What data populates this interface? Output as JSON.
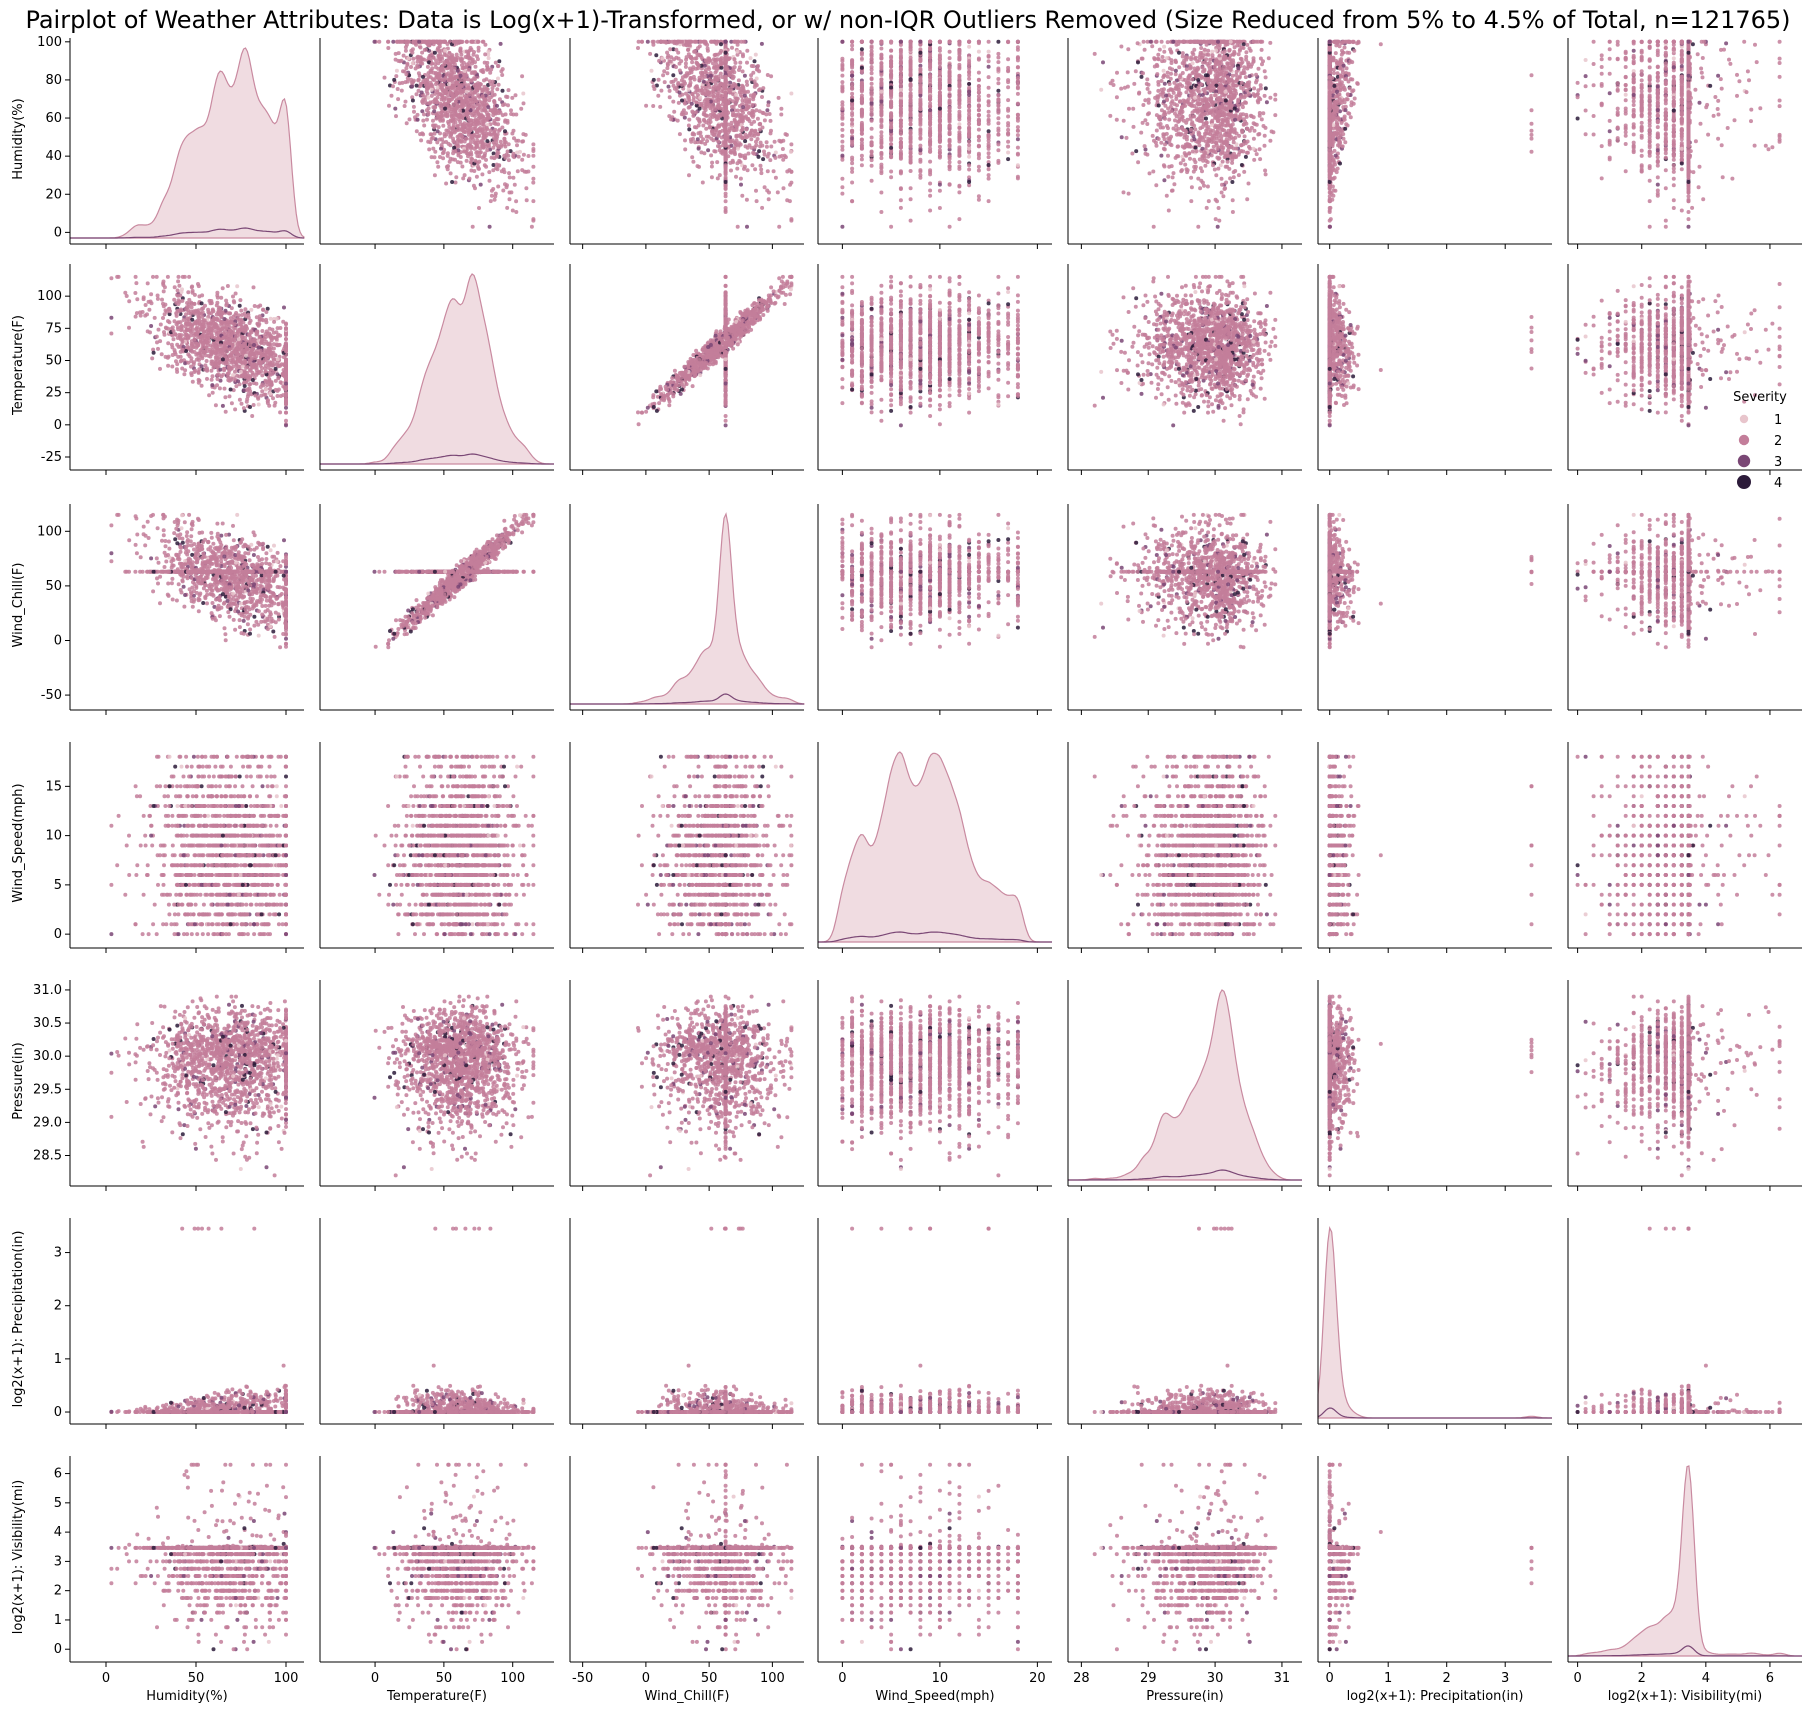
{
  "chart_data": {
    "type": "scatter",
    "title": "Pairplot of Weather Attributes: Data is Log(x+1)-Transformed, or w/ non-IQR Outliers Removed (Size Reduced from 5% to 4.5% of Total, n=121765)",
    "variables": [
      {
        "name": "Humidity(%)",
        "label": "Humidity(%)",
        "range": [
          -20,
          110
        ],
        "ticks": [
          0,
          50,
          100
        ],
        "ytick_labels": [
          0,
          20,
          40,
          60,
          80,
          100
        ],
        "ylim": [
          -4,
          102
        ]
      },
      {
        "name": "Temperature(F)",
        "label": "Temperature(F)",
        "range": [
          -40,
          130
        ],
        "ticks": [
          0,
          50,
          100
        ],
        "ytick_labels": [
          -25,
          0,
          25,
          50,
          75,
          100
        ],
        "ylim": [
          -32,
          125
        ]
      },
      {
        "name": "Wind_Chill(F)",
        "label": "Wind_Chill(F)",
        "range": [
          -60,
          125
        ],
        "ticks": [
          -50,
          0,
          50,
          100
        ],
        "ytick_labels": [
          -50,
          0,
          50,
          100
        ],
        "ylim": [
          -60,
          125
        ]
      },
      {
        "name": "Wind_Speed(mph)",
        "label": "Wind_Speed(mph)",
        "range": [
          -2.5,
          21.5
        ],
        "ticks": [
          0,
          10,
          20
        ],
        "ytick_labels": [
          0,
          5,
          10,
          15
        ],
        "ylim": [
          -1.0,
          19.5
        ]
      },
      {
        "name": "Pressure(in)",
        "label": "Pressure(in)",
        "range": [
          27.8,
          31.3
        ],
        "ticks": [
          28,
          29,
          30,
          31
        ],
        "ytick_labels": [
          28.5,
          29.0,
          29.5,
          30.0,
          30.5,
          31.0
        ],
        "ylim": [
          28.1,
          31.15
        ]
      },
      {
        "name": "log2(x+1): Precipitation(in)",
        "label": "log2(x+1): Precipitation(in)",
        "range": [
          -0.2,
          3.8
        ],
        "ticks": [
          0,
          1,
          2,
          3
        ],
        "ytick_labels": [
          0,
          1,
          2,
          3
        ],
        "ylim": [
          -0.15,
          3.65
        ]
      },
      {
        "name": "log2(x+1): Visibility(mi)",
        "label": "log2(x+1): Visibility(mi)",
        "range": [
          -0.3,
          7.0
        ],
        "ticks": [
          0,
          2,
          4,
          6
        ],
        "ytick_labels": [
          0,
          1,
          2,
          3,
          4,
          5,
          6
        ],
        "ylim": [
          -0.3,
          6.6
        ]
      }
    ],
    "hue": "Severity",
    "legend": {
      "title": "Severity",
      "placement": "right",
      "entries": [
        {
          "label": "1",
          "color": "#e8c5cc"
        },
        {
          "label": "2",
          "color": "#c37e9a"
        },
        {
          "label": "3",
          "color": "#7a4775"
        },
        {
          "label": "4",
          "color": "#2c1b3a"
        }
      ]
    },
    "colors": {
      "severity_1": "#e8c5cc",
      "severity_2": "#c37e9a",
      "severity_3": "#7a4775",
      "severity_4": "#2c1b3a",
      "kde_fill": "#ecd3da",
      "kde_line": "#c98aa0"
    },
    "n": 121765
  }
}
